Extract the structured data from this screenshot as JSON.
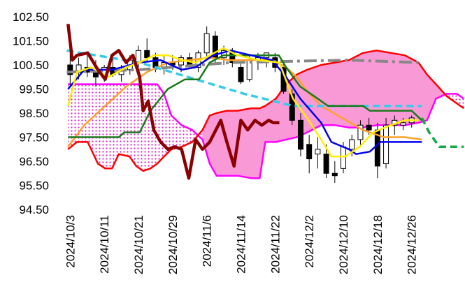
{
  "chart_data": {
    "type": "candlestick",
    "xlim": [
      -1.2,
      92.5
    ],
    "ylim": [
      94.5,
      102.5
    ],
    "xticks": [
      {
        "value": 0,
        "label": "2024/10/3"
      },
      {
        "value": 8,
        "label": "2024/10/11"
      },
      {
        "value": 16,
        "label": "2024/10/21"
      },
      {
        "value": 24,
        "label": "2024/10/29"
      },
      {
        "value": 32,
        "label": "2024/11/6"
      },
      {
        "value": 40,
        "label": "2024/11/14"
      },
      {
        "value": 48,
        "label": "2024/11/22"
      },
      {
        "value": 56,
        "label": "2024/12/2"
      },
      {
        "value": 64,
        "label": "2024/12/10"
      },
      {
        "value": 72,
        "label": "2024/12/18"
      },
      {
        "value": 80,
        "label": "2024/12/26"
      }
    ],
    "yticks": [
      {
        "value": 94.5,
        "label": "94.50"
      },
      {
        "value": 95.5,
        "label": "95.50"
      },
      {
        "value": 96.5,
        "label": "96.50"
      },
      {
        "value": 97.5,
        "label": "97.50"
      },
      {
        "value": 98.5,
        "label": "98.50"
      },
      {
        "value": 99.5,
        "label": "99.50"
      },
      {
        "value": 100.5,
        "label": "100.50"
      },
      {
        "value": 101.5,
        "label": "101.50"
      },
      {
        "value": 102.5,
        "label": "102.50"
      }
    ],
    "cloud": {
      "x": [
        -0.5,
        1.6,
        4.1,
        6.5,
        8.2,
        9.8,
        11.4,
        13.9,
        15.5,
        17.1,
        18.8,
        20.4,
        22.0,
        23.7,
        26.1,
        28.6,
        31.0,
        32.7,
        34.3,
        36.7,
        39.2,
        42.4,
        44.4,
        45.7,
        48.2,
        50.6,
        53.1,
        55.5,
        58.8,
        62.0,
        65.3,
        68.6,
        71.8,
        75.1,
        78.4,
        81.6,
        83.6,
        85.7,
        88.2,
        90.6,
        92.2
      ],
      "span_a": [
        97.0,
        97.3,
        97.3,
        96.4,
        96.2,
        96.2,
        96.8,
        96.7,
        96.3,
        96.1,
        96.2,
        96.4,
        96.7,
        97.0,
        97.1,
        97.3,
        97.8,
        98.4,
        98.5,
        98.6,
        98.6,
        98.7,
        98.7,
        98.8,
        99.1,
        99.7,
        100.1,
        100.3,
        100.5,
        100.6,
        100.7,
        101.0,
        101.1,
        101.0,
        100.9,
        100.6,
        100.1,
        99.7,
        99.2,
        98.9,
        98.7
      ],
      "span_b": [
        99.7,
        99.7,
        99.7,
        99.7,
        99.7,
        99.7,
        99.7,
        99.7,
        99.7,
        99.7,
        99.7,
        99.7,
        99.3,
        98.4,
        98.0,
        97.8,
        97.4,
        96.4,
        95.9,
        95.9,
        95.9,
        95.8,
        95.8,
        97.3,
        97.3,
        97.4,
        97.5,
        97.7,
        98.0,
        98.0,
        97.9,
        97.9,
        98.0,
        98.0,
        98.0,
        98.1,
        98.2,
        99.1,
        99.3,
        99.3,
        99.1
      ],
      "color_a": "#ff0000",
      "color_b": "#ff00ff",
      "fill_color": "#f99ad6",
      "pattern_color": "#e020c8"
    },
    "candles": {
      "x": [
        0,
        2,
        4,
        6,
        8,
        10,
        12,
        14,
        16,
        18,
        20,
        22,
        24,
        26,
        28,
        30,
        32,
        34,
        36,
        38,
        40,
        42,
        44,
        46,
        48,
        50,
        52,
        54,
        56,
        58,
        60,
        62,
        64,
        66,
        68,
        70,
        72,
        74,
        76,
        78,
        80
      ],
      "open": [
        100.5,
        100.2,
        100.4,
        100.2,
        100.0,
        100.4,
        100.1,
        100.3,
        100.6,
        101.1,
        100.8,
        100.4,
        100.6,
        100.5,
        100.8,
        100.4,
        101.0,
        101.7,
        100.8,
        101.0,
        100.4,
        99.9,
        100.7,
        100.8,
        100.8,
        100.4,
        99.3,
        98.2,
        97.2,
        96.8,
        96.8,
        96.0,
        96.2,
        97.0,
        97.4,
        98.0,
        97.8,
        96.4,
        98.0,
        98.0,
        98.1
      ],
      "high": [
        101.2,
        100.8,
        100.9,
        100.7,
        100.5,
        100.8,
        100.5,
        100.9,
        101.3,
        101.6,
        101.0,
        100.9,
        100.9,
        100.9,
        101.0,
        101.1,
        102.1,
        101.9,
        101.3,
        101.2,
        100.6,
        100.9,
        101.0,
        101.0,
        101.0,
        100.7,
        99.5,
        98.5,
        97.6,
        97.5,
        97.2,
        96.5,
        97.3,
        97.6,
        98.2,
        98.3,
        98.1,
        98.3,
        98.4,
        98.3,
        98.4
      ],
      "low": [
        99.6,
        99.9,
        100.0,
        99.6,
        99.8,
        100.0,
        99.8,
        100.1,
        100.4,
        100.6,
        100.2,
        100.1,
        100.3,
        100.2,
        100.4,
        100.2,
        100.8,
        100.6,
        100.5,
        100.4,
        99.7,
        99.8,
        100.3,
        100.4,
        100.2,
        99.3,
        98.0,
        96.7,
        96.0,
        96.2,
        95.8,
        95.6,
        96.0,
        96.7,
        97.1,
        97.6,
        95.8,
        96.2,
        97.6,
        97.8,
        97.9
      ],
      "close": [
        100.1,
        100.5,
        100.2,
        100.0,
        100.4,
        100.1,
        100.3,
        100.7,
        101.1,
        100.8,
        100.4,
        100.6,
        100.5,
        100.8,
        100.5,
        101.0,
        101.8,
        100.8,
        101.1,
        100.6,
        99.8,
        100.7,
        100.8,
        101.0,
        100.4,
        99.4,
        98.2,
        97.0,
        96.6,
        97.0,
        96.0,
        95.9,
        97.1,
        97.4,
        98.0,
        97.8,
        96.3,
        98.0,
        98.2,
        98.1,
        98.3
      ]
    },
    "lines": [
      {
        "color": "#ffa028",
        "style": "solid",
        "x": [
          -0.5,
          3.3,
          8.2,
          13.1,
          18.0,
          22.9,
          27.8,
          32.7,
          37.6,
          42.4,
          47.3,
          50.6,
          53.1,
          55.5,
          58.8,
          63.7,
          68.6,
          73.5,
          78.4,
          82.4
        ],
        "values": [
          97.1,
          98.0,
          98.8,
          99.6,
          100.2,
          100.6,
          100.7,
          100.8,
          100.7,
          100.7,
          100.7,
          100.4,
          100.0,
          99.4,
          98.8,
          98.3,
          97.8,
          97.5,
          97.5,
          97.4
        ]
      },
      {
        "color": "#888888",
        "style": "dashdot",
        "x": [
          -0.8,
          16.3,
          37.6,
          65.3,
          81.6
        ],
        "values": [
          100.2,
          100.3,
          100.6,
          100.7,
          100.6
        ]
      },
      {
        "color": "#33ccee",
        "style": "dashed",
        "x": [
          -0.8,
          16.3,
          29.4,
          40.8,
          52.2,
          65.3,
          82.4
        ],
        "values": [
          101.1,
          100.6,
          99.9,
          99.3,
          98.8,
          98.8,
          98.8
        ]
      },
      {
        "color": "#11aa44",
        "style": "dashed",
        "x": [
          82.4,
          84.1,
          86.5,
          92.2
        ],
        "values": [
          98.3,
          97.7,
          97.1,
          97.1
        ]
      },
      {
        "color": "#1a7a1a",
        "style": "solid",
        "x": [
          -0.5,
          11.4,
          12.7,
          16.3,
          18.8,
          22.9,
          26.9,
          30.2,
          32.7,
          35.9,
          48.9,
          50.6,
          53.9,
          58.0,
          60.4,
          68.6,
          70.2,
          80.0,
          82.4
        ],
        "values": [
          97.5,
          97.5,
          97.7,
          97.7,
          98.6,
          99.5,
          99.9,
          99.9,
          100.6,
          100.9,
          100.9,
          100.4,
          99.6,
          99.1,
          98.8,
          98.8,
          98.6,
          98.6,
          98.2
        ]
      },
      {
        "color": "#0000ee",
        "style": "solid",
        "x": [
          -0.5,
          3.3,
          9.8,
          16.3,
          21.2,
          26.1,
          29.4,
          33.5,
          37.6,
          40.0,
          42.4,
          47.3,
          50.6,
          53.9,
          58.8,
          61.2,
          65.3,
          67.0,
          70.2,
          72.7,
          82.4
        ],
        "values": [
          99.5,
          100.3,
          100.3,
          100.6,
          100.7,
          100.3,
          100.4,
          100.9,
          101.1,
          101.0,
          100.9,
          100.7,
          100.0,
          99.1,
          98.1,
          97.3,
          97.0,
          96.8,
          96.9,
          97.3,
          97.3
        ]
      },
      {
        "color": "#ffee00",
        "style": "solid",
        "x": [
          -0.5,
          1.6,
          4.9,
          9.0,
          13.1,
          16.3,
          19.6,
          22.9,
          26.1,
          29.4,
          32.7,
          35.9,
          39.2,
          44.1,
          49.0,
          52.2,
          55.5,
          58.8,
          61.2,
          64.5,
          67.8,
          71.0,
          75.1,
          78.4,
          81.6
        ],
        "values": [
          98.8,
          100.2,
          100.4,
          100.0,
          100.4,
          100.6,
          100.9,
          100.9,
          100.7,
          100.6,
          100.9,
          101.2,
          100.9,
          100.7,
          100.6,
          99.1,
          98.3,
          97.4,
          96.7,
          96.7,
          97.1,
          97.7,
          98.0,
          98.2,
          98.2
        ]
      },
      {
        "color": "#8b0000",
        "style": "thick",
        "x": [
          -0.5,
          0.5,
          1.6,
          4.1,
          6.5,
          8.2,
          9.8,
          11.4,
          13.1,
          14.7,
          16.3,
          17.1,
          18.3,
          19.6,
          21.2,
          22.9,
          24.5,
          26.1,
          27.8,
          29.4,
          31.0,
          32.7,
          35.3,
          36.7,
          38.4,
          40.0,
          41.6,
          43.3,
          44.9,
          46.5,
          47.6,
          49.0
        ],
        "values": [
          102.2,
          100.7,
          100.9,
          101.0,
          100.3,
          99.9,
          100.9,
          101.1,
          100.6,
          100.9,
          100.0,
          98.6,
          99.0,
          97.8,
          97.3,
          97.0,
          97.1,
          97.0,
          95.8,
          97.4,
          97.0,
          97.3,
          98.2,
          97.3,
          96.3,
          98.2,
          97.8,
          98.2,
          98.0,
          98.2,
          98.1,
          98.1
        ]
      }
    ]
  }
}
